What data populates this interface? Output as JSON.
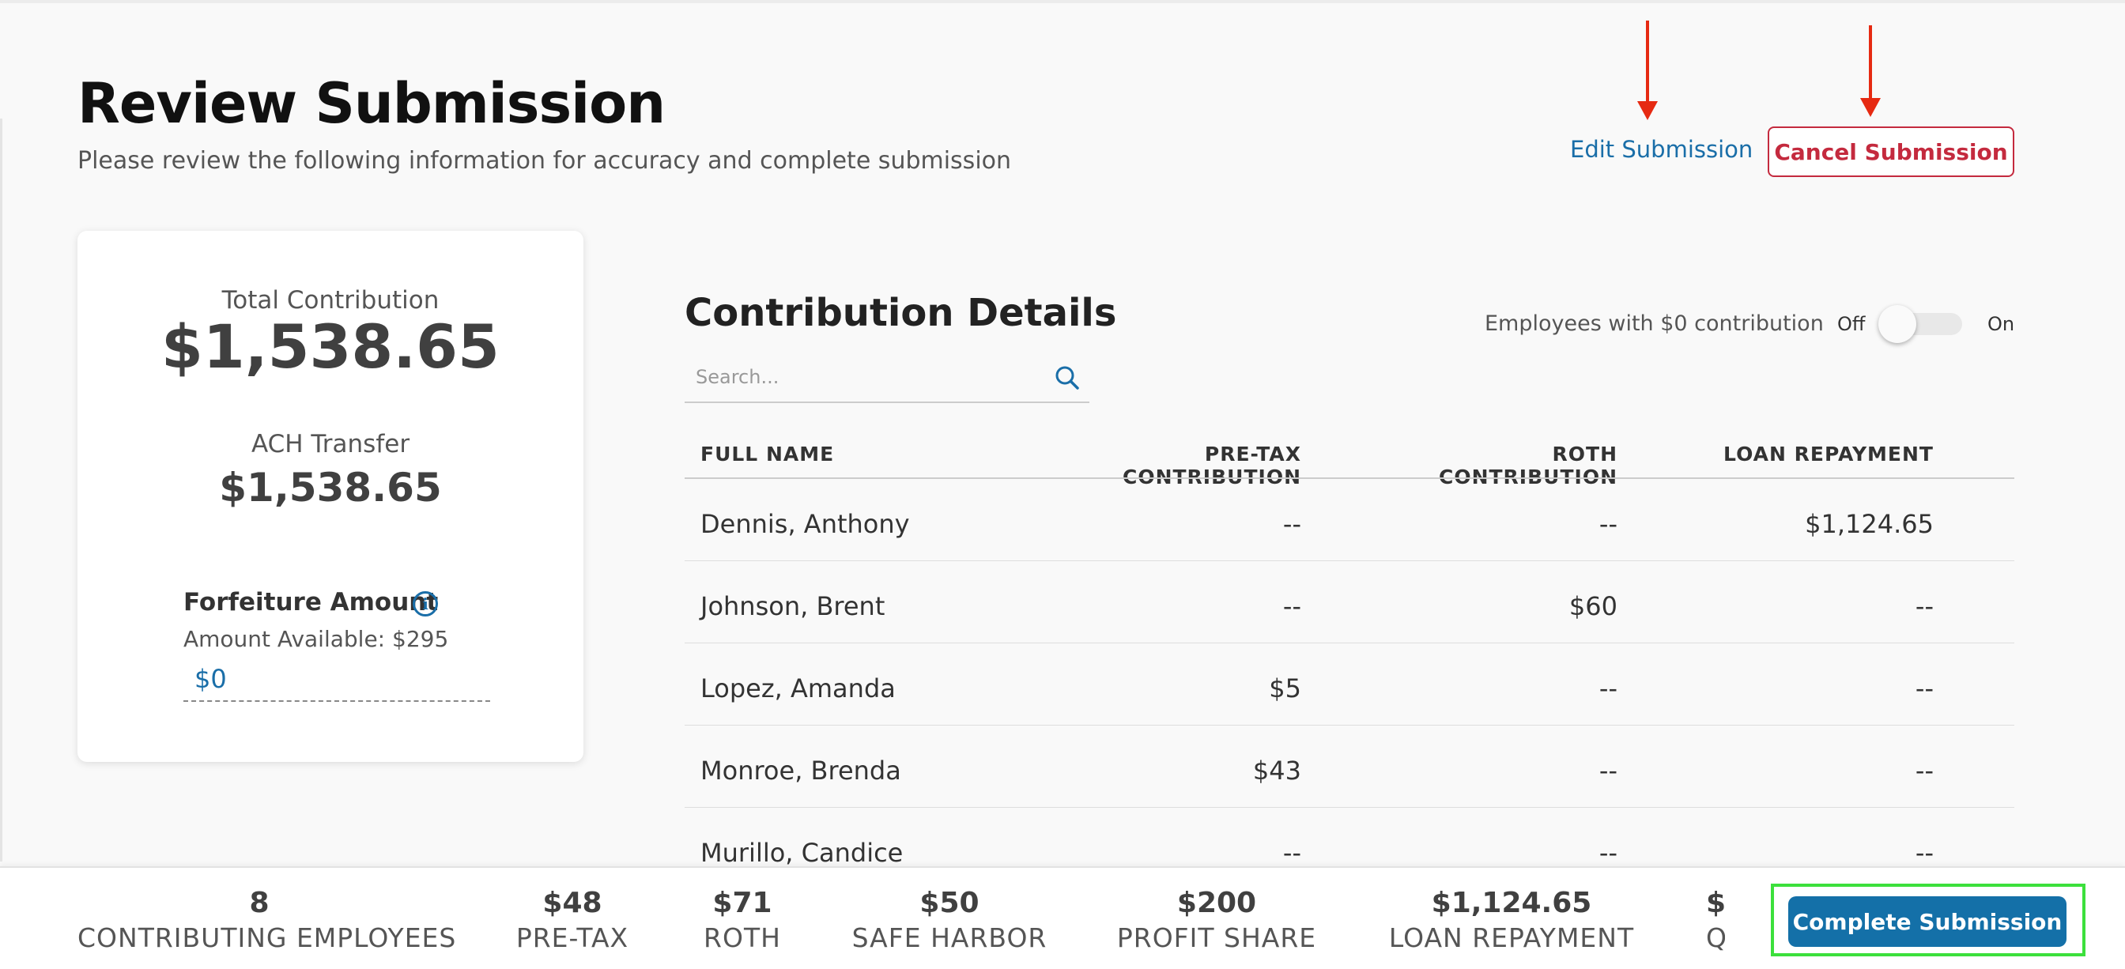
{
  "header": {
    "title": "Review Submission",
    "subtitle": "Please review the following information for accuracy and complete submission",
    "edit_label": "Edit Submission",
    "cancel_label": "Cancel Submission"
  },
  "summary": {
    "total_label": "Total Contribution",
    "total_value": "$1,538.65",
    "ach_label": "ACH Transfer",
    "ach_value": "$1,538.65",
    "forfeiture_title": "Forfeiture Amount",
    "forfeiture_available": "Amount Available: $295",
    "forfeiture_value": "$0",
    "info_icon": "i"
  },
  "details": {
    "title": "Contribution Details",
    "search_placeholder": "Search...",
    "toggle_label": "Employees with $0 contribution",
    "toggle_off": "Off",
    "toggle_on": "On",
    "toggle_state": "off"
  },
  "table": {
    "headers": [
      "FULL NAME",
      "PRE-TAX CONTRIBUTION",
      "ROTH CONTRIBUTION",
      "LOAN REPAYMENT"
    ],
    "rows": [
      {
        "name": "Dennis, Anthony",
        "pretax": "--",
        "roth": "--",
        "loan": "$1,124.65"
      },
      {
        "name": "Johnson, Brent",
        "pretax": "--",
        "roth": "$60",
        "loan": "--"
      },
      {
        "name": "Lopez, Amanda",
        "pretax": "$5",
        "roth": "--",
        "loan": "--"
      },
      {
        "name": "Monroe, Brenda",
        "pretax": "$43",
        "roth": "--",
        "loan": "--"
      },
      {
        "name": "Murillo, Candice",
        "pretax": "--",
        "roth": "--",
        "loan": "--"
      }
    ]
  },
  "footer": {
    "stats": [
      {
        "value": "8",
        "label": "CONTRIBUTING EMPLOYEES"
      },
      {
        "value": "$48",
        "label": "PRE-TAX"
      },
      {
        "value": "$71",
        "label": "ROTH"
      },
      {
        "value": "$50",
        "label": "SAFE HARBOR"
      },
      {
        "value": "$200",
        "label": "PROFIT SHARE"
      },
      {
        "value": "$1,124.65",
        "label": "LOAN REPAYMENT"
      }
    ],
    "clipped_value": "$",
    "clipped_label": "Q",
    "complete_label": "Complete Submission"
  },
  "colors": {
    "primary": "#1470a8",
    "danger": "#c42a3e",
    "annotation_arrow": "#e62a12",
    "annotation_highlight": "#3ce03c"
  }
}
